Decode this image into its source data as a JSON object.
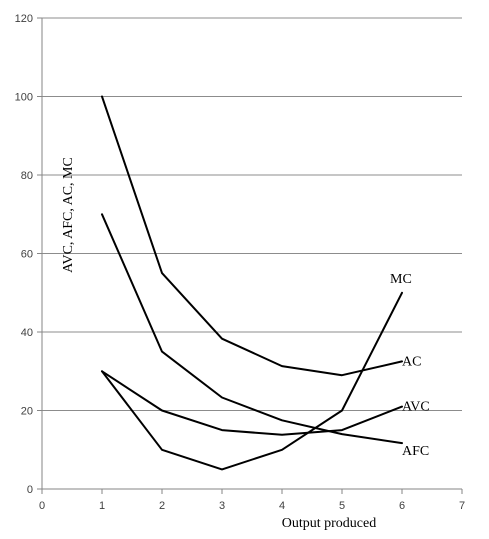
{
  "chart_data": {
    "type": "line",
    "title": "",
    "xlabel": "Output produced",
    "ylabel": "AVC, AFC, AC, MC",
    "xlim": [
      0,
      7
    ],
    "ylim": [
      0,
      120
    ],
    "xticks": [
      0,
      1,
      2,
      3,
      4,
      5,
      6,
      7
    ],
    "yticks": [
      0,
      20,
      40,
      60,
      80,
      100,
      120
    ],
    "grid": "horizontal",
    "legend": "inline labels at line ends",
    "series": [
      {
        "name": "AC",
        "x": [
          1,
          2,
          3,
          4,
          5,
          6
        ],
        "y": [
          100,
          55,
          38.3,
          31.3,
          29,
          32.5
        ],
        "color": "#000000"
      },
      {
        "name": "AVC",
        "x": [
          1,
          2,
          3,
          4,
          5,
          6
        ],
        "y": [
          30,
          20,
          15,
          13.8,
          15,
          21
        ],
        "color": "#000000"
      },
      {
        "name": "AFC",
        "x": [
          1,
          2,
          3,
          4,
          5,
          6
        ],
        "y": [
          70,
          35,
          23.3,
          17.5,
          14,
          11.7
        ],
        "color": "#000000"
      },
      {
        "name": "MC",
        "x": [
          1,
          2,
          3,
          4,
          5,
          6
        ],
        "y": [
          30,
          10,
          5,
          10,
          20,
          50
        ],
        "color": "#000000"
      }
    ]
  }
}
